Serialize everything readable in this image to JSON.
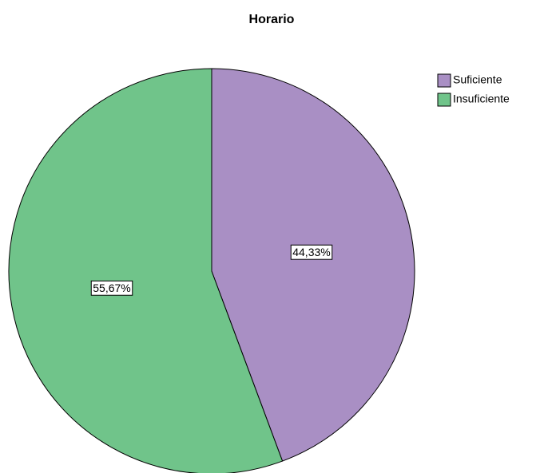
{
  "chart_data": {
    "type": "pie",
    "title": "Horario",
    "categories": [
      "Suficiente",
      "Insuficiente"
    ],
    "values": [
      44.33,
      55.67
    ],
    "value_labels": [
      "44,33%",
      "55,67%"
    ],
    "colors": [
      "#a98fc4",
      "#70c48a"
    ],
    "legend": "top-right"
  }
}
